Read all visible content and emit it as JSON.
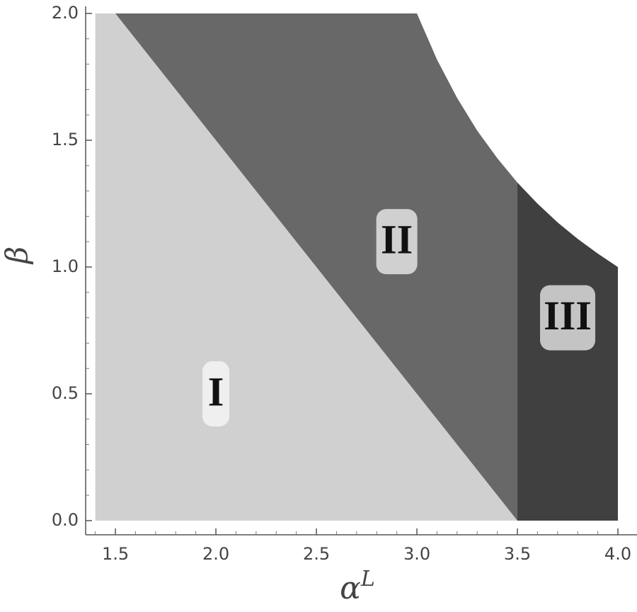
{
  "chart_data": {
    "type": "region",
    "xlabel": "α",
    "xlabel_sup": "L",
    "ylabel": "β",
    "xlim": [
      1.352,
      4.095
    ],
    "ylim": [
      -0.056,
      2.0
    ],
    "xticks": [
      1.5,
      {
        "value": 2,
        "label": "2.0"
      },
      2.5,
      {
        "value": 3,
        "label": "3.0"
      },
      3.5,
      {
        "value": 4,
        "label": "4.0"
      }
    ],
    "yticks": [
      {
        "value": 0,
        "label": "0.0"
      },
      0.5,
      {
        "value": 1,
        "label": "1.0"
      },
      1.5,
      {
        "value": 2,
        "label": "2.0"
      }
    ],
    "xminorticks": [
      1.4,
      1.6,
      1.7,
      1.8,
      1.9,
      2.1,
      2.2,
      2.3,
      2.4,
      2.6,
      2.7,
      2.8,
      2.9,
      3.1,
      3.2,
      3.3,
      3.4,
      3.6,
      3.7,
      3.8,
      3.9
    ],
    "yminorticks": [
      0.1,
      0.2,
      0.3,
      0.4,
      0.6,
      0.7,
      0.8,
      0.9,
      1.1,
      1.2,
      1.3,
      1.4,
      1.6,
      1.7,
      1.8,
      1.9
    ],
    "regions": [
      {
        "name": "I",
        "color": "#d0d0d0",
        "label_color": "#efefef",
        "label_x": 2.0,
        "label_y": 0.5,
        "x": [
          1.4,
          3.5,
          1.5,
          1.4
        ],
        "y": [
          0,
          0,
          2,
          2
        ]
      },
      {
        "name": "II",
        "color": "#686868",
        "label_color": "#d0d0d0",
        "label_x": 2.9,
        "label_y": 1.1,
        "x": [
          1.5,
          3.5,
          3.5,
          3.4,
          3.3,
          3.2,
          3.1,
          3.0
        ],
        "y": [
          2,
          0,
          1.333,
          1.429,
          1.538,
          1.667,
          1.818,
          2
        ]
      },
      {
        "name": "III",
        "color": "#404040",
        "label_color": "#c4c4c4",
        "label_x": 3.75,
        "label_y": 0.8,
        "x": [
          3.5,
          4.0,
          4.0,
          3.9,
          3.8,
          3.7,
          3.6,
          3.5
        ],
        "y": [
          0,
          0,
          1,
          1.053,
          1.111,
          1.176,
          1.25,
          1.333
        ]
      }
    ]
  }
}
